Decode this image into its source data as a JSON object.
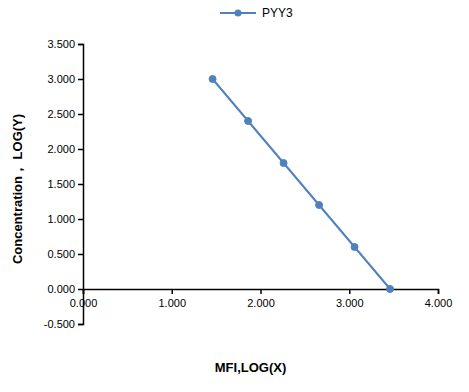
{
  "chart_data": {
    "type": "line",
    "x_label": "MFI,LOG(X)",
    "y_label": "Concentration， LOG(Y)",
    "x": [
      1.46,
      1.86,
      2.26,
      2.66,
      3.06,
      3.46
    ],
    "series": [
      {
        "name": "PYY3",
        "color": "#4f81bd",
        "marker": "circle",
        "line_style": "solid",
        "values": [
          3.0,
          2.4,
          1.8,
          1.2,
          0.6,
          0.0
        ]
      }
    ],
    "xlim": [
      0,
      4
    ],
    "xticks": [
      {
        "value": 0,
        "label": "0.000"
      },
      {
        "value": 1,
        "label": "1.000"
      },
      {
        "value": 2,
        "label": "2.000"
      },
      {
        "value": 3,
        "label": "3.000"
      },
      {
        "value": 4,
        "label": "4.000"
      }
    ],
    "ylim": [
      -0.5,
      3.5
    ],
    "yticks": [
      {
        "value": -0.5,
        "label": "-0.500"
      },
      {
        "value": 0,
        "label": "0.000"
      },
      {
        "value": 0.5,
        "label": "0.500"
      },
      {
        "value": 1,
        "label": "1.000"
      },
      {
        "value": 1.5,
        "label": "1.500"
      },
      {
        "value": 2,
        "label": "2.000"
      },
      {
        "value": 2.5,
        "label": "2.500"
      },
      {
        "value": 3,
        "label": "3.000"
      },
      {
        "value": 3.5,
        "label": "3.500"
      }
    ],
    "grid": false,
    "legend": "top"
  }
}
